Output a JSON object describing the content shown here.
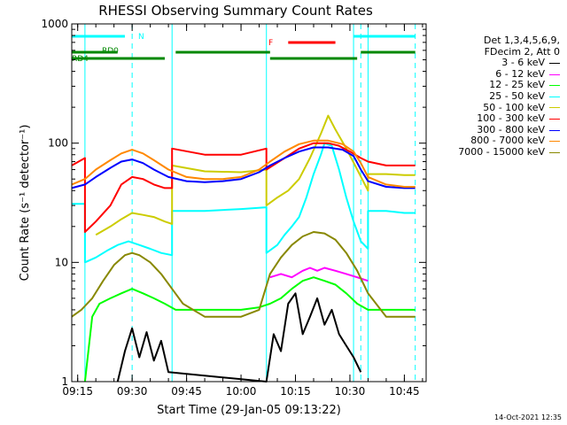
{
  "chart_data": {
    "type": "line",
    "title": "RHESSI Observing Summary Count Rates",
    "xlabel": "Start Time (29-Jan-05 09:13:22)",
    "ylabel": "Count Rate (s⁻¹ detector⁻¹)",
    "y_scale": "log",
    "ylim": [
      1,
      1000
    ],
    "xlim": [
      "09:13:22",
      "10:51:00"
    ],
    "x_ticks": [
      "09:15",
      "09:30",
      "09:45",
      "10:00",
      "10:15",
      "10:30",
      "10:45"
    ],
    "y_ticks": [
      "1",
      "10",
      "100",
      "1000"
    ],
    "legend_header": [
      "Det 1,3,4,5,6,9,",
      "FDecim 2, Att 0"
    ],
    "legend_placement": "right",
    "series": [
      {
        "name": "3 - 6 keV",
        "color": "#000000",
        "x": [
          "09:26",
          "09:28",
          "09:30",
          "09:32",
          "09:34",
          "09:36",
          "09:38",
          "09:40",
          "10:07",
          "10:09",
          "10:11",
          "10:13",
          "10:15",
          "10:17",
          "10:19",
          "10:21",
          "10:23",
          "10:25",
          "10:27",
          "10:29",
          "10:31",
          "10:33"
        ],
        "y": [
          1,
          1.8,
          2.8,
          1.6,
          2.6,
          1.5,
          2.2,
          1.2,
          1,
          2.5,
          1.8,
          4.5,
          5.5,
          2.5,
          3.5,
          5,
          3,
          4,
          2.5,
          2,
          1.6,
          1.2
        ]
      },
      {
        "name": "6 - 12 keV",
        "color": "#ff00ff",
        "x": [
          "10:08",
          "10:11",
          "10:14",
          "10:17",
          "10:19",
          "10:21",
          "10:23",
          "10:26",
          "10:29",
          "10:32",
          "10:35"
        ],
        "y": [
          7.5,
          8,
          7.5,
          8.5,
          9,
          8.5,
          9,
          8.5,
          8,
          7.5,
          7
        ]
      },
      {
        "name": "12 - 25 keV",
        "color": "#00ff00",
        "x": [
          "09:17",
          "09:19",
          "09:21",
          "09:24",
          "09:27",
          "09:30",
          "09:33",
          "09:36",
          "09:39",
          "09:42",
          "09:45",
          "09:50",
          "09:55",
          "10:00",
          "10:05",
          "10:08",
          "10:11",
          "10:14",
          "10:17",
          "10:20",
          "10:23",
          "10:26",
          "10:29",
          "10:32",
          "10:35",
          "10:40",
          "10:45",
          "10:48"
        ],
        "y": [
          1,
          3.5,
          4.5,
          5,
          5.5,
          6,
          5.5,
          5,
          4.5,
          4,
          4,
          4,
          4,
          4,
          4.2,
          4.5,
          5,
          6,
          7,
          7.5,
          7,
          6.5,
          5.5,
          4.5,
          4,
          4,
          4,
          4
        ]
      },
      {
        "name": "25 - 50 keV",
        "color": "#00ffff",
        "x": [
          "09:13:22",
          "09:17",
          "09:17",
          "09:20",
          "09:23",
          "09:26",
          "09:29",
          "09:32",
          "09:35",
          "09:38",
          "09:41",
          "09:41",
          "09:50",
          "10:00",
          "10:07",
          "10:07",
          "10:10",
          "10:12",
          "10:14",
          "10:16",
          "10:18",
          "10:20",
          "10:22",
          "10:23",
          "10:25",
          "10:27",
          "10:29",
          "10:31",
          "10:33",
          "10:35",
          "10:35",
          "10:40",
          "10:45",
          "10:48"
        ],
        "y": [
          31,
          31,
          10,
          11,
          12.5,
          14,
          15,
          14,
          13,
          12,
          11.5,
          27,
          27,
          28,
          29,
          12,
          14,
          17,
          20,
          24,
          35,
          55,
          80,
          100,
          95,
          60,
          35,
          22,
          15,
          13,
          27,
          27,
          26,
          26
        ]
      },
      {
        "name": "50 - 100 keV",
        "color": "#cccc00",
        "x": [
          "09:20",
          "09:24",
          "09:27",
          "09:30",
          "09:33",
          "09:36",
          "09:39",
          "09:41",
          "09:41",
          "09:50",
          "10:00",
          "10:07",
          "10:07",
          "10:10",
          "10:13",
          "10:16",
          "10:19",
          "10:22",
          "10:24",
          "10:26",
          "10:29",
          "10:32",
          "10:35",
          "10:35",
          "10:40",
          "10:45",
          "10:48"
        ],
        "y": [
          17,
          20,
          23,
          26,
          25,
          24,
          22,
          21,
          65,
          58,
          57,
          60,
          30,
          35,
          40,
          50,
          75,
          120,
          170,
          130,
          90,
          60,
          40,
          55,
          55,
          54,
          54
        ]
      },
      {
        "name": "100 - 300 keV",
        "color": "#ff0000",
        "x": [
          "09:13:22",
          "09:17",
          "09:17",
          "09:20",
          "09:24",
          "09:27",
          "09:30",
          "09:33",
          "09:36",
          "09:39",
          "09:41",
          "09:41",
          "09:50",
          "10:00",
          "10:07",
          "10:07",
          "10:12",
          "10:16",
          "10:20",
          "10:24",
          "10:27",
          "10:30",
          "10:33",
          "10:35",
          "10:35",
          "10:40",
          "10:45",
          "10:48"
        ],
        "y": [
          65,
          75,
          18,
          22,
          30,
          45,
          52,
          50,
          45,
          42,
          42,
          90,
          80,
          80,
          90,
          60,
          75,
          90,
          100,
          100,
          95,
          85,
          75,
          70,
          70,
          65,
          65,
          65
        ]
      },
      {
        "name": "300 - 800 keV",
        "color": "#0000ff",
        "x": [
          "09:13:22",
          "09:17",
          "09:20",
          "09:24",
          "09:27",
          "09:30",
          "09:33",
          "09:36",
          "09:40",
          "09:45",
          "09:50",
          "09:55",
          "10:00",
          "10:05",
          "10:08",
          "10:12",
          "10:16",
          "10:20",
          "10:24",
          "10:28",
          "10:31",
          "10:33",
          "10:35",
          "10:40",
          "10:45",
          "10:48"
        ],
        "y": [
          42,
          45,
          52,
          62,
          70,
          73,
          68,
          60,
          52,
          48,
          47,
          48,
          50,
          57,
          65,
          75,
          85,
          92,
          92,
          88,
          78,
          60,
          48,
          43,
          42,
          42
        ]
      },
      {
        "name": "800 - 7000 keV",
        "color": "#ff8800",
        "x": [
          "09:13:22",
          "09:17",
          "09:20",
          "09:24",
          "09:27",
          "09:30",
          "09:33",
          "09:36",
          "09:40",
          "09:45",
          "09:50",
          "09:55",
          "10:00",
          "10:05",
          "10:08",
          "10:12",
          "10:16",
          "10:20",
          "10:24",
          "10:28",
          "10:31",
          "10:33",
          "10:35",
          "10:40",
          "10:45",
          "10:48"
        ],
        "y": [
          45,
          50,
          60,
          72,
          82,
          88,
          82,
          72,
          60,
          52,
          50,
          50,
          52,
          60,
          70,
          85,
          98,
          105,
          105,
          98,
          85,
          68,
          52,
          45,
          43,
          43
        ]
      },
      {
        "name": "7000 - 15000 keV",
        "color": "#888800",
        "x": [
          "09:13:22",
          "09:16",
          "09:19",
          "09:22",
          "09:25",
          "09:28",
          "09:30",
          "09:32",
          "09:35",
          "09:38",
          "09:41",
          "09:44",
          "09:50",
          "09:55",
          "10:00",
          "10:05",
          "10:08",
          "10:11",
          "10:14",
          "10:17",
          "10:20",
          "10:23",
          "10:26",
          "10:29",
          "10:32",
          "10:35",
          "10:40",
          "10:45",
          "10:48"
        ],
        "y": [
          3.5,
          4,
          5,
          7,
          9.5,
          11.5,
          12,
          11.5,
          10,
          8,
          6,
          4.5,
          3.5,
          3.5,
          3.5,
          4,
          8,
          11,
          14,
          16.5,
          18,
          17.5,
          15.5,
          12,
          8.5,
          5.5,
          3.5,
          3.5,
          3.5
        ]
      }
    ],
    "flags": [
      {
        "label": "N",
        "color": "#00ffff",
        "segments": [
          [
            "09:13:22",
            "09:28"
          ],
          [
            "10:31",
            "10:48"
          ]
        ]
      },
      {
        "label": "F",
        "color": "#ff0000",
        "segments": [
          [
            "10:13",
            "10:26"
          ]
        ]
      },
      {
        "label": "RD0",
        "color": "#008800",
        "segments": [
          [
            "09:13:22",
            "09:26"
          ],
          [
            "09:42",
            "10:08"
          ],
          [
            "10:33",
            "10:48"
          ]
        ]
      },
      {
        "label": "RD4",
        "color": "#008800",
        "segments": [
          [
            "09:13:22",
            "09:39"
          ],
          [
            "10:08",
            "10:32"
          ]
        ]
      }
    ],
    "vlines": {
      "solid": [
        "09:13:22",
        "09:17",
        "09:41",
        "10:07",
        "10:31",
        "10:35"
      ],
      "dashed": [
        "09:30",
        "10:33",
        "10:48"
      ],
      "color": "#00ffff"
    }
  },
  "footer_date": "14-Oct-2021 12:35"
}
